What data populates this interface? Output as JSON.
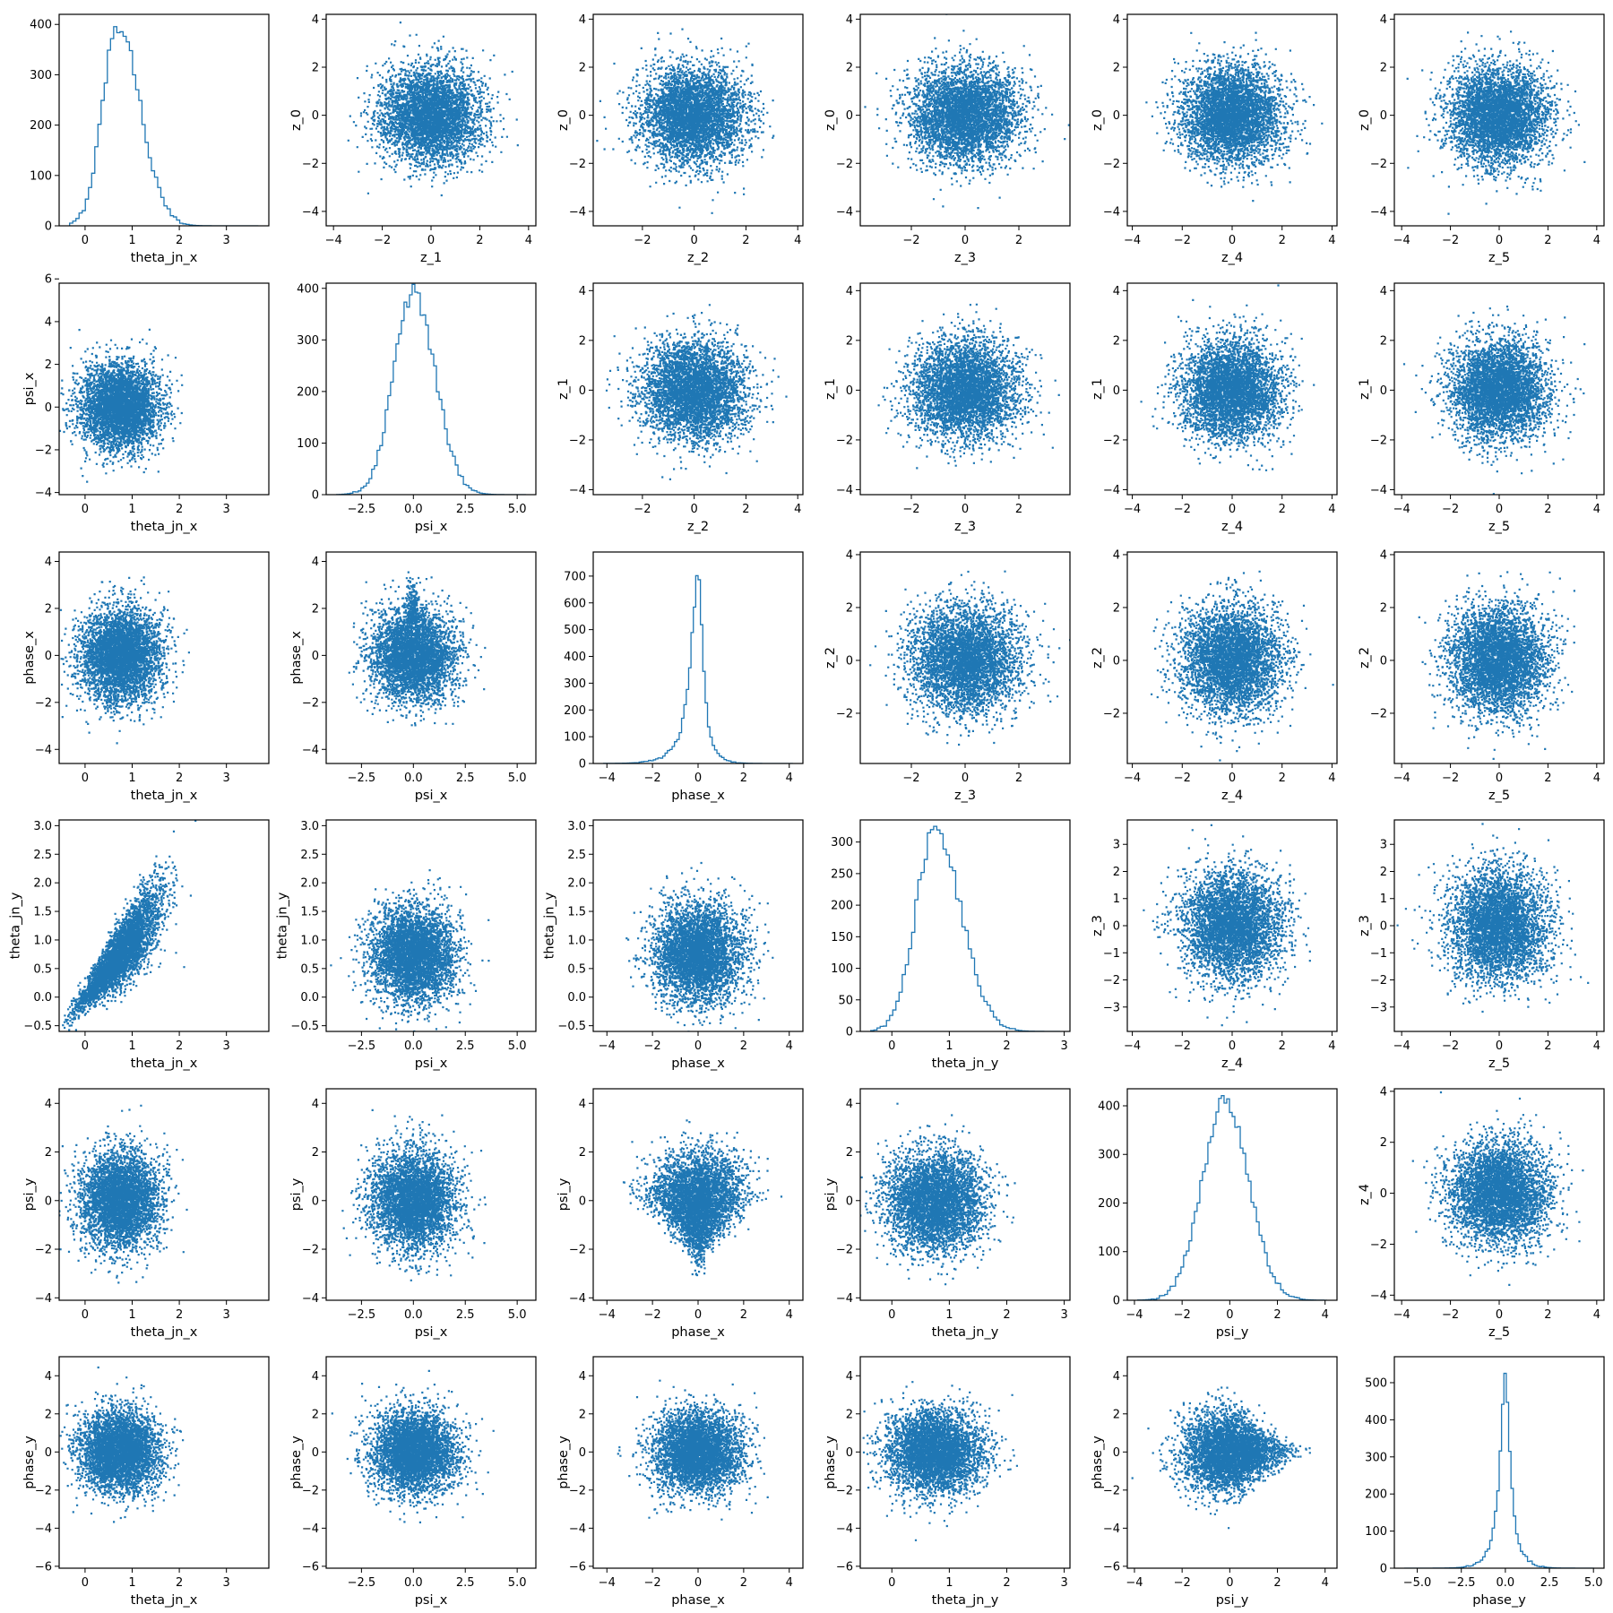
{
  "figure": {
    "marker_color": "#1f77b4",
    "axis_color": "#000000"
  },
  "chart_data": [
    {
      "row": 0,
      "col": 0,
      "type": "histogram",
      "xlabel": "theta_jn_x",
      "ylabel": "",
      "xlim": [
        -0.55,
        3.9
      ],
      "ylim": [
        0,
        420
      ],
      "xticks": [
        0,
        1,
        2,
        3
      ],
      "yticks": [
        0,
        100,
        200,
        300,
        400
      ],
      "dist": {
        "kind": "gamma",
        "peak": 0.7,
        "left": 0.33,
        "right": 0.47,
        "n_bins": 60,
        "max_count": 400
      }
    },
    {
      "row": 0,
      "col": 1,
      "type": "scatter",
      "xlabel": "z_1",
      "ylabel": "z_0",
      "xlim": [
        -4.3,
        4.3
      ],
      "ylim": [
        -4.6,
        4.2
      ],
      "xticks": [
        -4,
        -2,
        0,
        2,
        4
      ],
      "yticks": [
        -4,
        -2,
        0,
        2,
        4
      ],
      "cloud": {
        "cx": 0,
        "cy": 0,
        "sx": 1,
        "sy": 1,
        "shape": "round"
      }
    },
    {
      "row": 0,
      "col": 2,
      "type": "scatter",
      "xlabel": "z_2",
      "ylabel": "z_0",
      "xlim": [
        -3.9,
        4.2
      ],
      "ylim": [
        -4.6,
        4.2
      ],
      "xticks": [
        -2,
        0,
        2,
        4
      ],
      "yticks": [
        -4,
        -2,
        0,
        2,
        4
      ],
      "cloud": {
        "cx": 0,
        "cy": 0,
        "sx": 1,
        "sy": 1,
        "shape": "round"
      }
    },
    {
      "row": 0,
      "col": 3,
      "type": "scatter",
      "xlabel": "z_3",
      "ylabel": "z_0",
      "xlim": [
        -3.9,
        3.9
      ],
      "ylim": [
        -4.6,
        4.2
      ],
      "xticks": [
        -2,
        0,
        2
      ],
      "yticks": [
        -4,
        -2,
        0,
        2,
        4
      ],
      "cloud": {
        "cx": 0,
        "cy": 0,
        "sx": 1,
        "sy": 1,
        "shape": "round"
      }
    },
    {
      "row": 0,
      "col": 4,
      "type": "scatter",
      "xlabel": "z_4",
      "ylabel": "z_0",
      "xlim": [
        -4.2,
        4.2
      ],
      "ylim": [
        -4.6,
        4.2
      ],
      "xticks": [
        -4,
        -2,
        0,
        2,
        4
      ],
      "yticks": [
        -4,
        -2,
        0,
        2,
        4
      ],
      "cloud": {
        "cx": 0,
        "cy": 0,
        "sx": 1,
        "sy": 1,
        "shape": "round"
      }
    },
    {
      "row": 0,
      "col": 5,
      "type": "scatter",
      "xlabel": "z_5",
      "ylabel": "z_0",
      "xlim": [
        -4.3,
        4.3
      ],
      "ylim": [
        -4.6,
        4.2
      ],
      "xticks": [
        -4,
        -2,
        0,
        2,
        4
      ],
      "yticks": [
        -4,
        -2,
        0,
        2,
        4
      ],
      "cloud": {
        "cx": 0,
        "cy": 0,
        "sx": 1,
        "sy": 1,
        "shape": "round"
      }
    },
    {
      "row": 1,
      "col": 0,
      "type": "scatter",
      "xlabel": "theta_jn_x",
      "ylabel": "psi_x",
      "xlim": [
        -0.55,
        3.9
      ],
      "ylim": [
        -4.1,
        5.8
      ],
      "xticks": [
        0,
        1,
        2,
        3
      ],
      "yticks": [
        -4,
        -2,
        0,
        2,
        4,
        6
      ],
      "cloud": {
        "cx": 0.75,
        "cy": 0,
        "sx": 0.42,
        "sy": 1,
        "shape": "round"
      }
    },
    {
      "row": 1,
      "col": 1,
      "type": "histogram",
      "xlabel": "psi_x",
      "ylabel": "",
      "xlim": [
        -4.2,
        5.9
      ],
      "ylim": [
        0,
        410
      ],
      "xticks": [
        -2.5,
        0,
        2.5,
        5
      ],
      "xticklabels": [
        "−2.5",
        "0.0",
        "2.5",
        "5.0"
      ],
      "yticks": [
        0,
        100,
        200,
        300,
        400
      ],
      "dist": {
        "kind": "normal",
        "peak": 0,
        "left": 0.95,
        "right": 1.05,
        "n_bins": 70,
        "max_count": 390
      }
    },
    {
      "row": 1,
      "col": 2,
      "type": "scatter",
      "xlabel": "z_2",
      "ylabel": "z_1",
      "xlim": [
        -3.9,
        4.2
      ],
      "ylim": [
        -4.2,
        4.3
      ],
      "xticks": [
        -2,
        0,
        2,
        4
      ],
      "yticks": [
        -4,
        -2,
        0,
        2,
        4
      ],
      "cloud": {
        "cx": 0,
        "cy": 0,
        "sx": 1,
        "sy": 1,
        "shape": "round"
      }
    },
    {
      "row": 1,
      "col": 3,
      "type": "scatter",
      "xlabel": "z_3",
      "ylabel": "z_1",
      "xlim": [
        -3.9,
        3.9
      ],
      "ylim": [
        -4.2,
        4.3
      ],
      "xticks": [
        -2,
        0,
        2
      ],
      "yticks": [
        -4,
        -2,
        0,
        2,
        4
      ],
      "cloud": {
        "cx": 0,
        "cy": 0,
        "sx": 1,
        "sy": 1,
        "shape": "round"
      }
    },
    {
      "row": 1,
      "col": 4,
      "type": "scatter",
      "xlabel": "z_4",
      "ylabel": "z_1",
      "xlim": [
        -4.2,
        4.2
      ],
      "ylim": [
        -4.2,
        4.3
      ],
      "xticks": [
        -4,
        -2,
        0,
        2,
        4
      ],
      "yticks": [
        -4,
        -2,
        0,
        2,
        4
      ],
      "cloud": {
        "cx": 0,
        "cy": 0,
        "sx": 1,
        "sy": 1,
        "shape": "round"
      }
    },
    {
      "row": 1,
      "col": 5,
      "type": "scatter",
      "xlabel": "z_5",
      "ylabel": "z_1",
      "xlim": [
        -4.3,
        4.3
      ],
      "ylim": [
        -4.2,
        4.3
      ],
      "xticks": [
        -4,
        -2,
        0,
        2,
        4
      ],
      "yticks": [
        -4,
        -2,
        0,
        2,
        4
      ],
      "cloud": {
        "cx": 0,
        "cy": 0,
        "sx": 1,
        "sy": 1,
        "shape": "round"
      }
    },
    {
      "row": 2,
      "col": 0,
      "type": "scatter",
      "xlabel": "theta_jn_x",
      "ylabel": "phase_x",
      "xlim": [
        -0.55,
        3.9
      ],
      "ylim": [
        -4.6,
        4.4
      ],
      "xticks": [
        0,
        1,
        2,
        3
      ],
      "yticks": [
        -4,
        -2,
        0,
        2,
        4
      ],
      "cloud": {
        "cx": 0.75,
        "cy": 0,
        "sx": 0.42,
        "sy": 1,
        "shape": "round"
      }
    },
    {
      "row": 2,
      "col": 1,
      "type": "scatter",
      "xlabel": "psi_x",
      "ylabel": "phase_x",
      "xlim": [
        -4.2,
        5.9
      ],
      "ylim": [
        -4.6,
        4.4
      ],
      "xticks": [
        -2.5,
        0,
        2.5,
        5
      ],
      "xticklabels": [
        "−2.5",
        "0.0",
        "2.5",
        "5.0"
      ],
      "yticks": [
        -4,
        -2,
        0,
        2,
        4
      ],
      "cloud": {
        "cx": 0,
        "cy": 0,
        "sx": 1,
        "sy": 1,
        "shape": "heart"
      }
    },
    {
      "row": 2,
      "col": 2,
      "type": "histogram",
      "xlabel": "phase_x",
      "ylabel": "",
      "xlim": [
        -4.6,
        4.6
      ],
      "ylim": [
        0,
        790
      ],
      "xticks": [
        -4,
        -2,
        0,
        2,
        4
      ],
      "yticks": [
        0,
        100,
        200,
        300,
        400,
        500,
        600,
        700
      ],
      "dist": {
        "kind": "peaked",
        "peak": 0,
        "left": 0.85,
        "right": 0.55,
        "n_bins": 80,
        "max_count": 755
      }
    },
    {
      "row": 2,
      "col": 3,
      "type": "scatter",
      "xlabel": "z_3",
      "ylabel": "z_2",
      "xlim": [
        -3.9,
        3.9
      ],
      "ylim": [
        -3.9,
        4.1
      ],
      "xticks": [
        -2,
        0,
        2
      ],
      "yticks": [
        -2,
        0,
        2,
        4
      ],
      "cloud": {
        "cx": 0,
        "cy": 0,
        "sx": 1,
        "sy": 1,
        "shape": "round"
      }
    },
    {
      "row": 2,
      "col": 4,
      "type": "scatter",
      "xlabel": "z_4",
      "ylabel": "z_2",
      "xlim": [
        -4.2,
        4.2
      ],
      "ylim": [
        -3.9,
        4.1
      ],
      "xticks": [
        -4,
        -2,
        0,
        2,
        4
      ],
      "yticks": [
        -2,
        0,
        2,
        4
      ],
      "cloud": {
        "cx": 0,
        "cy": 0,
        "sx": 1,
        "sy": 1,
        "shape": "round"
      }
    },
    {
      "row": 2,
      "col": 5,
      "type": "scatter",
      "xlabel": "z_5",
      "ylabel": "z_2",
      "xlim": [
        -4.3,
        4.3
      ],
      "ylim": [
        -3.9,
        4.1
      ],
      "xticks": [
        -4,
        -2,
        0,
        2,
        4
      ],
      "yticks": [
        -2,
        0,
        2,
        4
      ],
      "cloud": {
        "cx": 0,
        "cy": 0,
        "sx": 1,
        "sy": 1,
        "shape": "round"
      }
    },
    {
      "row": 3,
      "col": 0,
      "type": "scatter",
      "xlabel": "theta_jn_x",
      "ylabel": "theta_jn_y",
      "xlim": [
        -0.55,
        3.9
      ],
      "ylim": [
        -0.6,
        3.1
      ],
      "xticks": [
        0,
        1,
        2,
        3
      ],
      "yticks": [
        -0.5,
        0,
        0.5,
        1,
        1.5,
        2,
        2.5,
        3
      ],
      "yticklabels": [
        "−0.5",
        "0.0",
        "0.5",
        "1.0",
        "1.5",
        "2.0",
        "2.5",
        "3.0"
      ],
      "cloud": {
        "cx": 0.75,
        "cy": 0.75,
        "sx": 0.42,
        "sy": 0.42,
        "shape": "wedge"
      }
    },
    {
      "row": 3,
      "col": 1,
      "type": "scatter",
      "xlabel": "psi_x",
      "ylabel": "theta_jn_y",
      "xlim": [
        -4.2,
        5.9
      ],
      "ylim": [
        -0.6,
        3.1
      ],
      "xticks": [
        -2.5,
        0,
        2.5,
        5
      ],
      "xticklabels": [
        "−2.5",
        "0.0",
        "2.5",
        "5.0"
      ],
      "yticks": [
        -0.5,
        0,
        0.5,
        1,
        1.5,
        2,
        2.5,
        3
      ],
      "yticklabels": [
        "−0.5",
        "0.0",
        "0.5",
        "1.0",
        "1.5",
        "2.0",
        "2.5",
        "3.0"
      ],
      "cloud": {
        "cx": 0,
        "cy": 0.75,
        "sx": 1,
        "sy": 0.42,
        "shape": "round"
      }
    },
    {
      "row": 3,
      "col": 2,
      "type": "scatter",
      "xlabel": "phase_x",
      "ylabel": "theta_jn_y",
      "xlim": [
        -4.6,
        4.6
      ],
      "ylim": [
        -0.6,
        3.1
      ],
      "xticks": [
        -4,
        -2,
        0,
        2,
        4
      ],
      "yticks": [
        -0.5,
        0,
        0.5,
        1,
        1.5,
        2,
        2.5,
        3
      ],
      "yticklabels": [
        "−0.5",
        "0.0",
        "0.5",
        "1.0",
        "1.5",
        "2.0",
        "2.5",
        "3.0"
      ],
      "cloud": {
        "cx": 0,
        "cy": 0.75,
        "sx": 0.95,
        "sy": 0.42,
        "shape": "round"
      }
    },
    {
      "row": 3,
      "col": 3,
      "type": "histogram",
      "xlabel": "theta_jn_y",
      "ylabel": "",
      "xlim": [
        -0.55,
        3.1
      ],
      "ylim": [
        0,
        335
      ],
      "xticks": [
        0,
        1,
        2,
        3
      ],
      "yticks": [
        0,
        50,
        100,
        150,
        200,
        250,
        300
      ],
      "dist": {
        "kind": "gamma",
        "peak": 0.75,
        "left": 0.33,
        "right": 0.45,
        "n_bins": 60,
        "max_count": 320
      }
    },
    {
      "row": 3,
      "col": 4,
      "type": "scatter",
      "xlabel": "z_4",
      "ylabel": "z_3",
      "xlim": [
        -4.2,
        4.2
      ],
      "ylim": [
        -3.9,
        3.9
      ],
      "xticks": [
        -4,
        -2,
        0,
        2,
        4
      ],
      "yticks": [
        -3,
        -2,
        -1,
        0,
        1,
        2,
        3
      ],
      "cloud": {
        "cx": 0,
        "cy": 0,
        "sx": 1,
        "sy": 1,
        "shape": "round"
      }
    },
    {
      "row": 3,
      "col": 5,
      "type": "scatter",
      "xlabel": "z_5",
      "ylabel": "z_3",
      "xlim": [
        -4.3,
        4.3
      ],
      "ylim": [
        -3.9,
        3.9
      ],
      "xticks": [
        -4,
        -2,
        0,
        2,
        4
      ],
      "yticks": [
        -3,
        -2,
        -1,
        0,
        1,
        2,
        3
      ],
      "cloud": {
        "cx": 0,
        "cy": 0,
        "sx": 1,
        "sy": 1,
        "shape": "round"
      }
    },
    {
      "row": 4,
      "col": 0,
      "type": "scatter",
      "xlabel": "theta_jn_x",
      "ylabel": "psi_y",
      "xlim": [
        -0.55,
        3.9
      ],
      "ylim": [
        -4.1,
        4.6
      ],
      "xticks": [
        0,
        1,
        2,
        3
      ],
      "yticks": [
        -4,
        -2,
        0,
        2,
        4
      ],
      "cloud": {
        "cx": 0.75,
        "cy": 0,
        "sx": 0.42,
        "sy": 1,
        "shape": "round"
      }
    },
    {
      "row": 4,
      "col": 1,
      "type": "scatter",
      "xlabel": "psi_x",
      "ylabel": "psi_y",
      "xlim": [
        -4.2,
        5.9
      ],
      "ylim": [
        -4.1,
        4.6
      ],
      "xticks": [
        -2.5,
        0,
        2.5,
        5
      ],
      "xticklabels": [
        "−2.5",
        "0.0",
        "2.5",
        "5.0"
      ],
      "yticks": [
        -4,
        -2,
        0,
        2,
        4
      ],
      "cloud": {
        "cx": 0,
        "cy": 0,
        "sx": 1,
        "sy": 1,
        "shape": "round"
      }
    },
    {
      "row": 4,
      "col": 2,
      "type": "scatter",
      "xlabel": "phase_x",
      "ylabel": "psi_y",
      "xlim": [
        -4.6,
        4.6
      ],
      "ylim": [
        -4.1,
        4.6
      ],
      "xticks": [
        -4,
        -2,
        0,
        2,
        4
      ],
      "yticks": [
        -4,
        -2,
        0,
        2,
        4
      ],
      "cloud": {
        "cx": 0,
        "cy": 0,
        "sx": 1,
        "sy": 1,
        "shape": "triangle"
      }
    },
    {
      "row": 4,
      "col": 3,
      "type": "scatter",
      "xlabel": "theta_jn_y",
      "ylabel": "psi_y",
      "xlim": [
        -0.55,
        3.1
      ],
      "ylim": [
        -4.1,
        4.6
      ],
      "xticks": [
        0,
        1,
        2,
        3
      ],
      "yticks": [
        -4,
        -2,
        0,
        2,
        4
      ],
      "cloud": {
        "cx": 0.75,
        "cy": 0,
        "sx": 0.42,
        "sy": 1,
        "shape": "round"
      }
    },
    {
      "row": 4,
      "col": 4,
      "type": "histogram",
      "xlabel": "psi_y",
      "ylabel": "",
      "xlim": [
        -4.3,
        4.5
      ],
      "ylim": [
        0,
        435
      ],
      "xticks": [
        -4,
        -2,
        0,
        2,
        4
      ],
      "yticks": [
        0,
        100,
        200,
        300,
        400
      ],
      "dist": {
        "kind": "normal",
        "peak": -0.2,
        "left": 0.95,
        "right": 1.0,
        "n_bins": 70,
        "max_count": 410
      }
    },
    {
      "row": 4,
      "col": 5,
      "type": "scatter",
      "xlabel": "z_5",
      "ylabel": "z_4",
      "xlim": [
        -4.3,
        4.3
      ],
      "ylim": [
        -4.2,
        4.1
      ],
      "xticks": [
        -4,
        -2,
        0,
        2,
        4
      ],
      "yticks": [
        -4,
        -2,
        0,
        2,
        4
      ],
      "cloud": {
        "cx": 0,
        "cy": 0,
        "sx": 1,
        "sy": 1,
        "shape": "round"
      }
    },
    {
      "row": 5,
      "col": 0,
      "type": "scatter",
      "xlabel": "theta_jn_x",
      "ylabel": "phase_y",
      "xlim": [
        -0.55,
        3.9
      ],
      "ylim": [
        -6.1,
        5.0
      ],
      "xticks": [
        0,
        1,
        2,
        3
      ],
      "yticks": [
        -6,
        -4,
        -2,
        0,
        2,
        4
      ],
      "cloud": {
        "cx": 0.75,
        "cy": 0,
        "sx": 0.42,
        "sy": 1.05,
        "shape": "round"
      }
    },
    {
      "row": 5,
      "col": 1,
      "type": "scatter",
      "xlabel": "psi_x",
      "ylabel": "phase_y",
      "xlim": [
        -4.2,
        5.9
      ],
      "ylim": [
        -6.1,
        5.0
      ],
      "xticks": [
        -2.5,
        0,
        2.5,
        5
      ],
      "xticklabels": [
        "−2.5",
        "0.0",
        "2.5",
        "5.0"
      ],
      "yticks": [
        -6,
        -4,
        -2,
        0,
        2,
        4
      ],
      "cloud": {
        "cx": 0,
        "cy": 0,
        "sx": 1,
        "sy": 1.05,
        "shape": "round"
      }
    },
    {
      "row": 5,
      "col": 2,
      "type": "scatter",
      "xlabel": "phase_x",
      "ylabel": "phase_y",
      "xlim": [
        -4.6,
        4.6
      ],
      "ylim": [
        -6.1,
        5.0
      ],
      "xticks": [
        -4,
        -2,
        0,
        2,
        4
      ],
      "yticks": [
        -6,
        -4,
        -2,
        0,
        2,
        4
      ],
      "cloud": {
        "cx": 0,
        "cy": 0,
        "sx": 0.95,
        "sy": 1.05,
        "shape": "round"
      }
    },
    {
      "row": 5,
      "col": 3,
      "type": "scatter",
      "xlabel": "theta_jn_y",
      "ylabel": "phase_y",
      "xlim": [
        -0.55,
        3.1
      ],
      "ylim": [
        -6.1,
        5.0
      ],
      "xticks": [
        0,
        1,
        2,
        3
      ],
      "yticks": [
        -6,
        -4,
        -2,
        0,
        2,
        4
      ],
      "cloud": {
        "cx": 0.75,
        "cy": 0,
        "sx": 0.42,
        "sy": 1.05,
        "shape": "round"
      }
    },
    {
      "row": 5,
      "col": 4,
      "type": "scatter",
      "xlabel": "psi_y",
      "ylabel": "phase_y",
      "xlim": [
        -4.3,
        4.5
      ],
      "ylim": [
        -6.1,
        5.0
      ],
      "xticks": [
        -4,
        -2,
        0,
        2,
        4
      ],
      "yticks": [
        -6,
        -4,
        -2,
        0,
        2,
        4
      ],
      "cloud": {
        "cx": 0,
        "cy": 0,
        "sx": 1,
        "sy": 1.05,
        "shape": "funnel"
      }
    },
    {
      "row": 5,
      "col": 5,
      "type": "histogram",
      "xlabel": "phase_y",
      "ylabel": "",
      "xlim": [
        -6.3,
        5.6
      ],
      "ylim": [
        0,
        570
      ],
      "xticks": [
        -5,
        -2.5,
        0,
        2.5,
        5
      ],
      "xticklabels": [
        "−5.0",
        "−2.5",
        "0.0",
        "2.5",
        "5.0"
      ],
      "yticks": [
        0,
        100,
        200,
        300,
        400,
        500
      ],
      "dist": {
        "kind": "peaked",
        "peak": 0,
        "left": 0.8,
        "right": 0.75,
        "n_bins": 80,
        "max_count": 545
      }
    }
  ]
}
